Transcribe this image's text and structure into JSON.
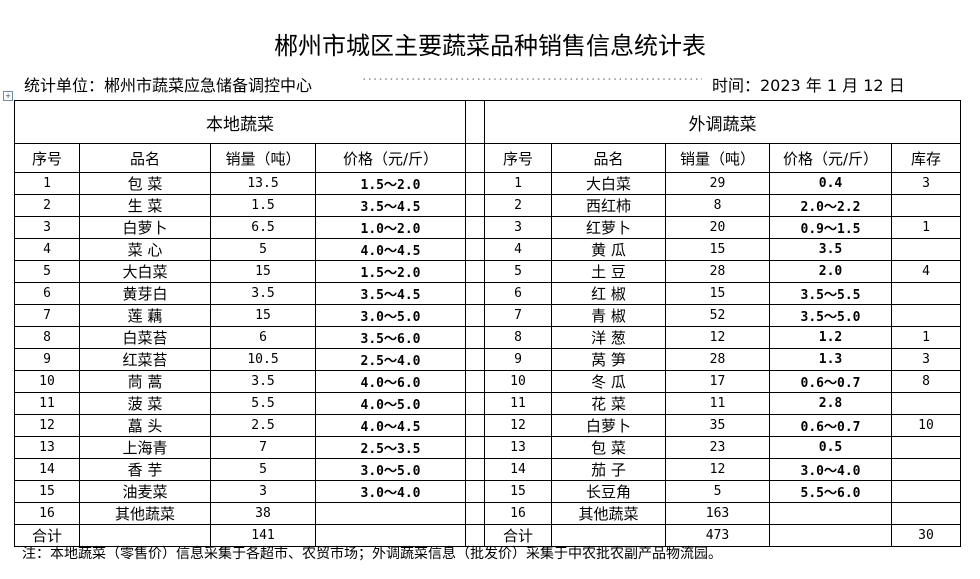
{
  "title": "郴州市城区主要蔬菜品种销售信息统计表",
  "unit_label": "统计单位：郴州市蔬菜应急储备调控中心",
  "time_label": "时间：2023 年 1 月 12 日",
  "local": {
    "group": "本地蔬菜",
    "headers": [
      "序号",
      "品名",
      "销量（吨）",
      "价格（元/斤）"
    ],
    "rows": [
      [
        "1",
        "包 菜",
        "13.5",
        "1.5～2.0"
      ],
      [
        "2",
        "生 菜",
        "1.5",
        "3.5～4.5"
      ],
      [
        "3",
        "白萝卜",
        "6.5",
        "1.0～2.0"
      ],
      [
        "4",
        "菜 心",
        "5",
        "4.0～4.5"
      ],
      [
        "5",
        "大白菜",
        "15",
        "1.5～2.0"
      ],
      [
        "6",
        "黄芽白",
        "3.5",
        "3.5～4.5"
      ],
      [
        "7",
        "莲 藕",
        "15",
        "3.0～5.0"
      ],
      [
        "8",
        "白菜苔",
        "6",
        "3.5～6.0"
      ],
      [
        "9",
        "红菜苔",
        "10.5",
        "2.5～4.0"
      ],
      [
        "10",
        "茼 蒿",
        "3.5",
        "4.0～6.0"
      ],
      [
        "11",
        "菠 菜",
        "5.5",
        "4.0～5.0"
      ],
      [
        "12",
        "藠 头",
        "2.5",
        "4.0～4.5"
      ],
      [
        "13",
        "上海青",
        "7",
        "2.5～3.5"
      ],
      [
        "14",
        "香 芋",
        "5",
        "3.0～5.0"
      ],
      [
        "15",
        "油麦菜",
        "3",
        "3.0～4.0"
      ],
      [
        "16",
        "其他蔬菜",
        "38",
        ""
      ]
    ],
    "total": [
      "合计",
      "",
      "141",
      ""
    ]
  },
  "external": {
    "group": "外调蔬菜",
    "headers": [
      "序号",
      "品名",
      "销量（吨）",
      "价格（元/斤）",
      "库存"
    ],
    "rows": [
      [
        "1",
        "大白菜",
        "29",
        "0.4",
        "3"
      ],
      [
        "2",
        "西红柿",
        "8",
        "2.0～2.2",
        ""
      ],
      [
        "3",
        "红萝卜",
        "20",
        "0.9～1.5",
        "1"
      ],
      [
        "4",
        "黄 瓜",
        "15",
        "3.5",
        ""
      ],
      [
        "5",
        "土 豆",
        "28",
        "2.0",
        "4"
      ],
      [
        "6",
        "红 椒",
        "15",
        "3.5～5.5",
        ""
      ],
      [
        "7",
        "青 椒",
        "52",
        "3.5～5.0",
        ""
      ],
      [
        "8",
        "洋 葱",
        "12",
        "1.2",
        "1"
      ],
      [
        "9",
        "莴 笋",
        "28",
        "1.3",
        "3"
      ],
      [
        "10",
        "冬 瓜",
        "17",
        "0.6～0.7",
        "8"
      ],
      [
        "11",
        "花 菜",
        "11",
        "2.8",
        ""
      ],
      [
        "12",
        "白萝卜",
        "35",
        "0.6～0.7",
        "10"
      ],
      [
        "13",
        "包 菜",
        "23",
        "0.5",
        ""
      ],
      [
        "14",
        "茄 子",
        "12",
        "3.0～4.0",
        ""
      ],
      [
        "15",
        "长豆角",
        "5",
        "5.5～6.0",
        ""
      ],
      [
        "16",
        "其他蔬菜",
        "163",
        "",
        ""
      ]
    ],
    "total": [
      "合计",
      "",
      "473",
      "",
      "30"
    ]
  },
  "note": "注：本地蔬菜（零售价）信息采集于各超市、农贸市场；外调蔬菜信息（批发价）采集于中农批农副产品物流园。"
}
